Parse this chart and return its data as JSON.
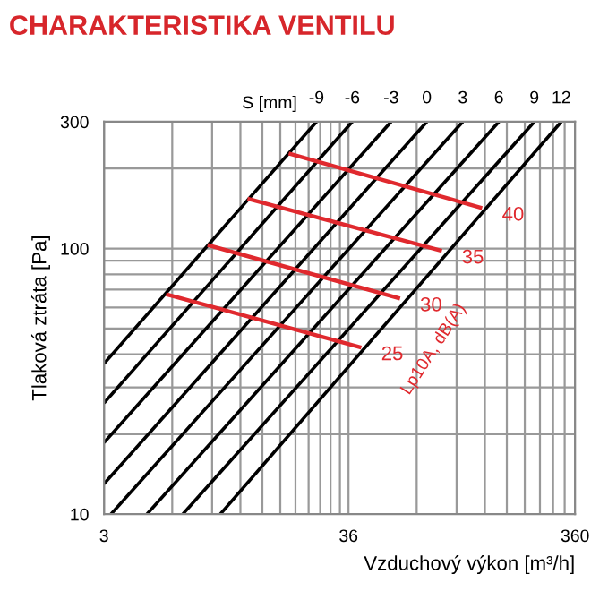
{
  "chart_data": {
    "type": "line",
    "title": "CHARAKTERISTIKA VENTILU",
    "xlabel": "Vzduchový výkon [m³/h]",
    "ylabel": "Tlaková ztráta [Pa]",
    "log": "xy",
    "grid": true,
    "xlim": [
      3,
      360
    ],
    "ylim": [
      10,
      300
    ],
    "xticks": [
      3,
      {
        "value": 6,
        "label": null
      },
      {
        "value": 9,
        "label": null
      },
      {
        "value": 12,
        "label": null
      },
      {
        "value": 15,
        "label": null
      },
      {
        "value": 18,
        "label": null
      },
      {
        "value": 21,
        "label": null
      },
      {
        "value": 24,
        "label": null
      },
      {
        "value": 27,
        "label": null
      },
      {
        "value": 30,
        "label": null
      },
      {
        "value": 33,
        "label": null
      },
      36,
      {
        "value": 72,
        "label": null
      },
      {
        "value": 108,
        "label": null
      },
      {
        "value": 144,
        "label": null
      },
      {
        "value": 180,
        "label": null
      },
      {
        "value": 216,
        "label": null
      },
      {
        "value": 252,
        "label": null
      },
      {
        "value": 288,
        "label": null
      },
      {
        "value": 324,
        "label": null
      },
      360
    ],
    "yticks": [
      10,
      {
        "value": 20,
        "label": null
      },
      {
        "value": 30,
        "label": null
      },
      {
        "value": 40,
        "label": null
      },
      {
        "value": 50,
        "label": null
      },
      {
        "value": 60,
        "label": null
      },
      {
        "value": 70,
        "label": null
      },
      {
        "value": 80,
        "label": null
      },
      {
        "value": 90,
        "label": null
      },
      100,
      {
        "value": 200,
        "label": null
      },
      300
    ],
    "annotations": [
      "S [mm]",
      "Lp10A, dB(A)"
    ],
    "series": [
      {
        "name": "-9",
        "color": "#000000",
        "x": [
          3,
          26.0
        ],
        "values": [
          36.9,
          300
        ]
      },
      {
        "name": "-6",
        "color": "#000000",
        "x": [
          3,
          37.4
        ],
        "values": [
          26.2,
          300
        ]
      },
      {
        "name": "-3",
        "color": "#000000",
        "x": [
          3,
          55.5
        ],
        "values": [
          18.6,
          300
        ]
      },
      {
        "name": "0",
        "color": "#000000",
        "x": [
          3,
          79.8
        ],
        "values": [
          13.0,
          300
        ]
      },
      {
        "name": "3",
        "color": "#000000",
        "x": [
          3.22,
          115
        ],
        "values": [
          10,
          300
        ]
      },
      {
        "name": "6",
        "color": "#000000",
        "x": [
          4.64,
          166
        ],
        "values": [
          10,
          300
        ]
      },
      {
        "name": "9",
        "color": "#000000",
        "x": [
          6.68,
          238
        ],
        "values": [
          10,
          300
        ]
      },
      {
        "name": "12",
        "color": "#000000",
        "x": [
          9.78,
          313
        ],
        "values": [
          10,
          300
        ]
      },
      {
        "name": "40",
        "color": "#e0292e",
        "x": [
          19.6,
          140
        ],
        "values": [
          228,
          142
        ]
      },
      {
        "name": "35",
        "color": "#e0292e",
        "x": [
          12.9,
          93
        ],
        "values": [
          154,
          98
        ]
      },
      {
        "name": "30",
        "color": "#e0292e",
        "x": [
          8.6,
          60.8
        ],
        "values": [
          103,
          64.8
        ]
      },
      {
        "name": "25",
        "color": "#e0292e",
        "x": [
          5.64,
          41.0
        ],
        "values": [
          67.3,
          42.4
        ]
      }
    ]
  }
}
